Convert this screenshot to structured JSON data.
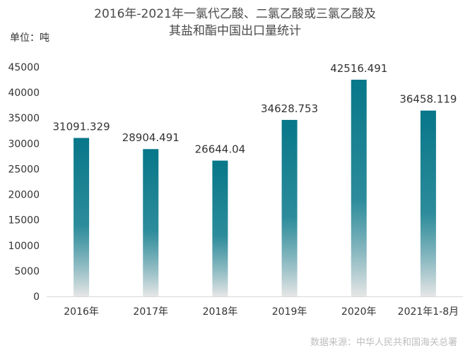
{
  "chart_data": {
    "type": "bar",
    "title_line1": "2016年-2021年一氯代乙酸、二氯乙酸或三氯乙酸及",
    "title_line2": "其盐和酯中国出口量统计",
    "unit_label": "单位：吨",
    "source": "数据来源：中华人民共和国海关总署",
    "categories": [
      "2016年",
      "2017年",
      "2018年",
      "2019年",
      "2020年",
      "2021年1-8月"
    ],
    "values": [
      31091.329,
      28904.491,
      26644.04,
      34628.753,
      42516.491,
      36458.119
    ],
    "value_labels": [
      "31091.329",
      "28904.491",
      "26644.04",
      "34628.753",
      "42516.491",
      "36458.119"
    ],
    "yticks": [
      0,
      5000,
      10000,
      15000,
      20000,
      25000,
      30000,
      35000,
      40000,
      45000
    ],
    "ylim": [
      0,
      45000
    ],
    "grid": false,
    "colors": {
      "bar_top": "#077789",
      "bar_bottom": "#e6e6e6",
      "axis": "#d9d9d9",
      "text": "#333333"
    }
  }
}
